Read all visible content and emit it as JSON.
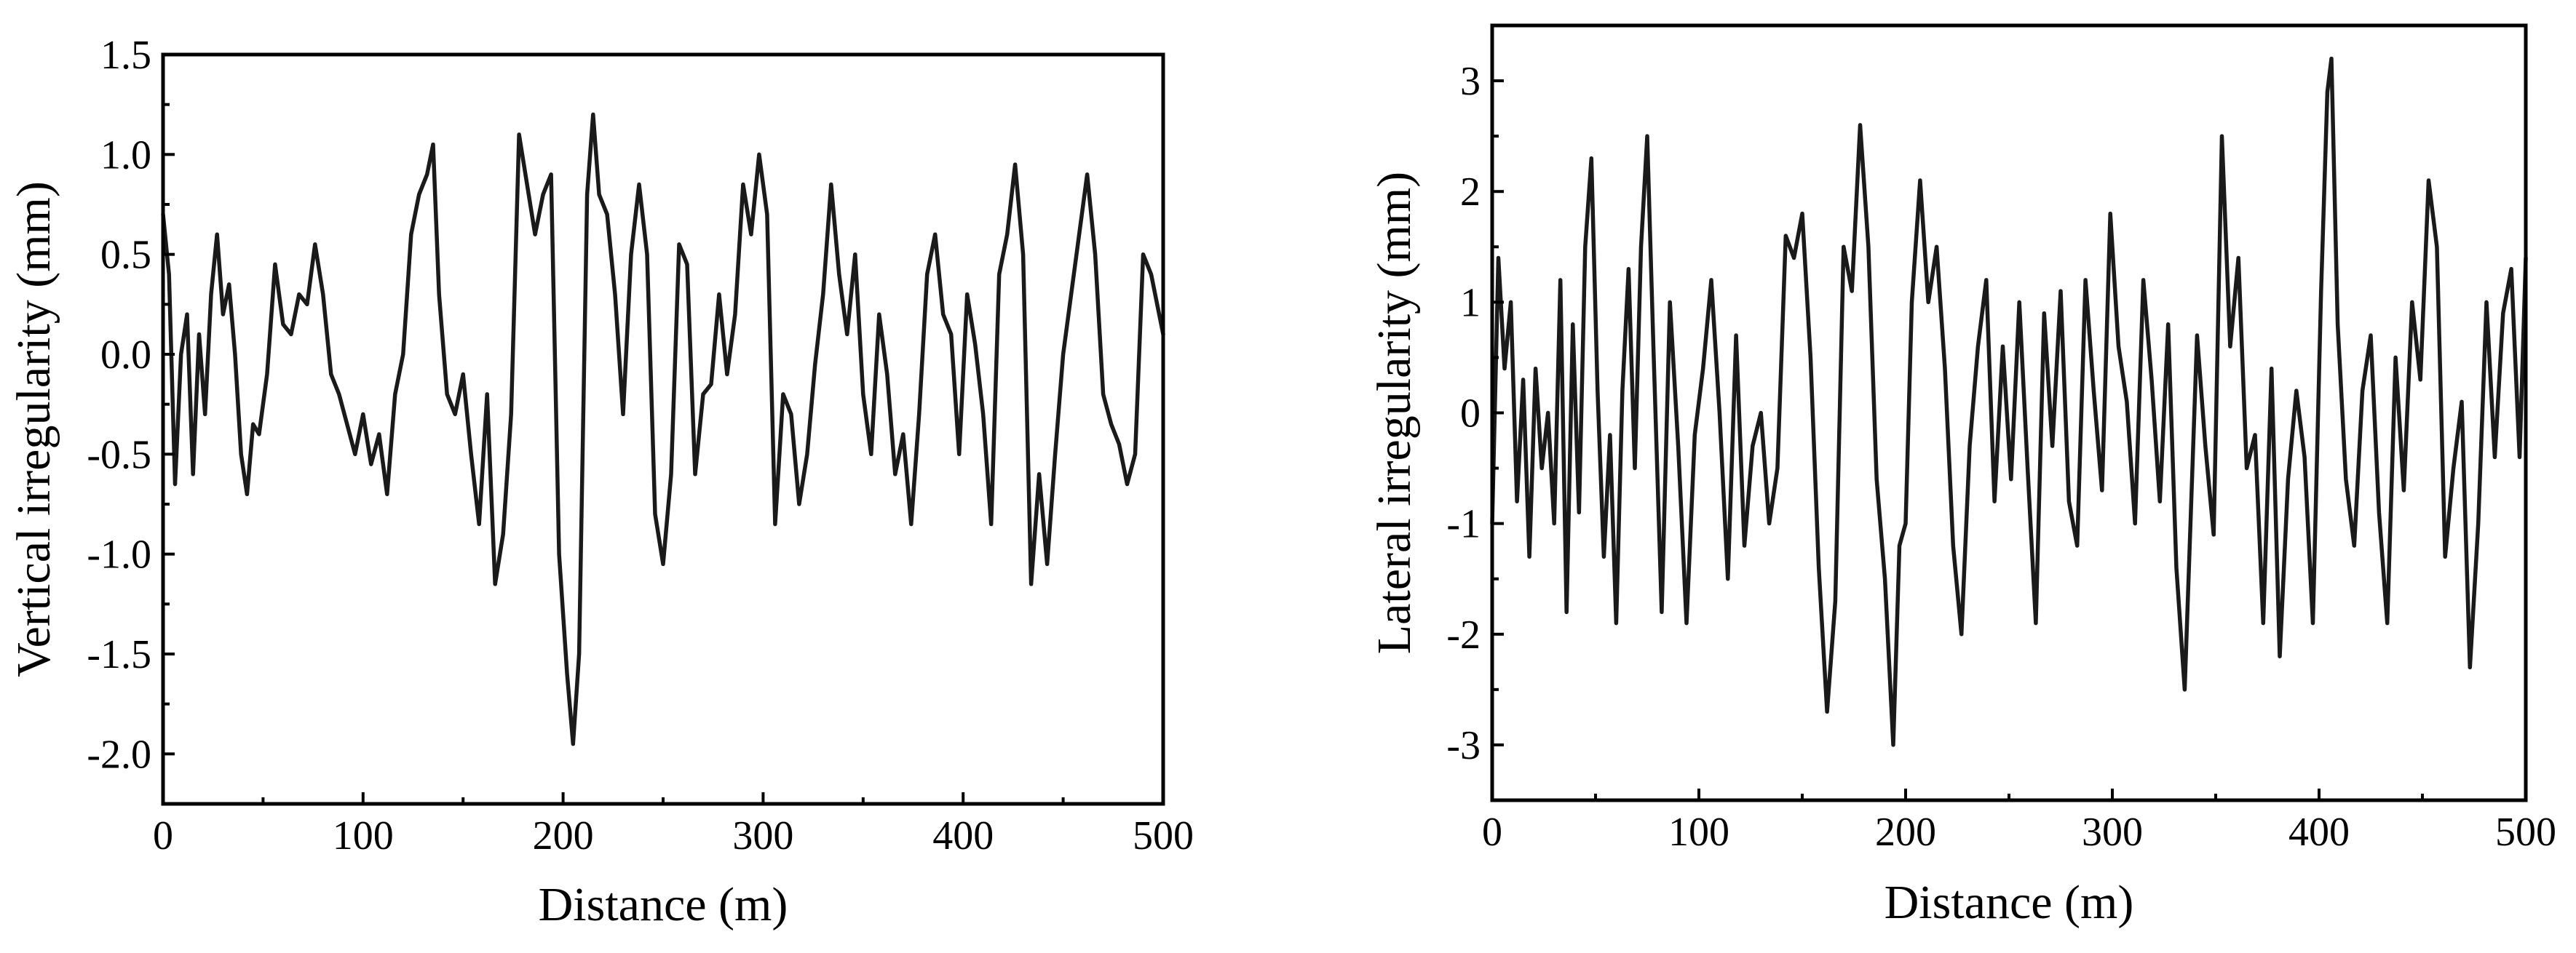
{
  "chart_data": [
    {
      "type": "line",
      "title": "",
      "xlabel": "Distance (m)",
      "ylabel": "Vertical irregularity (mm)",
      "xlim": [
        0,
        500
      ],
      "ylim": [
        -2.25,
        1.5
      ],
      "xticks": [
        0,
        100,
        200,
        300,
        400,
        500
      ],
      "xtick_labels": [
        "0",
        "100",
        "200",
        "300",
        "400",
        "500"
      ],
      "yticks": [
        -2.0,
        -1.5,
        -1.0,
        -0.5,
        0.0,
        0.5,
        1.0,
        1.5
      ],
      "ytick_labels": [
        "-2.0",
        "-1.5",
        "-1.0",
        "-0.5",
        "0.0",
        "0.5",
        "1.0",
        "1.5"
      ],
      "grid": false,
      "legend": "none",
      "color": "#1a1a1a",
      "series": [
        {
          "x": [
            0,
            3,
            6,
            9,
            12,
            15,
            18,
            21,
            24,
            27,
            30,
            33,
            36,
            39,
            42,
            45,
            48,
            52,
            56,
            60,
            64,
            68,
            72,
            76,
            80,
            84,
            88,
            92,
            96,
            100,
            104,
            108,
            112,
            116,
            120,
            124,
            128,
            132,
            135,
            138,
            142,
            146,
            150,
            154,
            158,
            162,
            166,
            170,
            174,
            178,
            182,
            186,
            190,
            194,
            198,
            202,
            205,
            208,
            212,
            215,
            218,
            222,
            226,
            230,
            234,
            238,
            242,
            246,
            250,
            254,
            258,
            262,
            266,
            270,
            274,
            278,
            282,
            286,
            290,
            294,
            298,
            302,
            306,
            310,
            314,
            318,
            322,
            326,
            330,
            334,
            338,
            342,
            346,
            350,
            354,
            358,
            362,
            366,
            370,
            374,
            378,
            382,
            386,
            390,
            394,
            398,
            402,
            406,
            410,
            414,
            418,
            422,
            426,
            430,
            434,
            438,
            442,
            446,
            450,
            454,
            458,
            462,
            466,
            470,
            474,
            478,
            482,
            486,
            490,
            494,
            498,
            500
          ],
          "y": [
            0.7,
            0.4,
            -0.65,
            0.0,
            0.2,
            -0.6,
            0.1,
            -0.3,
            0.3,
            0.6,
            0.2,
            0.35,
            0.0,
            -0.5,
            -0.7,
            -0.35,
            -0.4,
            -0.1,
            0.45,
            0.15,
            0.1,
            0.3,
            0.25,
            0.55,
            0.3,
            -0.1,
            -0.2,
            -0.35,
            -0.5,
            -0.3,
            -0.55,
            -0.4,
            -0.7,
            -0.2,
            0.0,
            0.6,
            0.8,
            0.9,
            1.05,
            0.3,
            -0.2,
            -0.3,
            -0.1,
            -0.5,
            -0.85,
            -0.2,
            -1.15,
            -0.9,
            -0.3,
            1.1,
            0.85,
            0.6,
            0.8,
            0.9,
            -1.0,
            -1.6,
            -1.95,
            -1.5,
            0.8,
            1.2,
            0.8,
            0.7,
            0.3,
            -0.3,
            0.5,
            0.85,
            0.5,
            -0.8,
            -1.05,
            -0.6,
            0.55,
            0.45,
            -0.6,
            -0.2,
            -0.15,
            0.3,
            -0.1,
            0.2,
            0.85,
            0.6,
            1.0,
            0.7,
            -0.85,
            -0.2,
            -0.3,
            -0.75,
            -0.5,
            -0.05,
            0.3,
            0.85,
            0.4,
            0.1,
            0.5,
            -0.2,
            -0.5,
            0.2,
            -0.1,
            -0.6,
            -0.4,
            -0.85,
            -0.3,
            0.4,
            0.6,
            0.2,
            0.1,
            -0.5,
            0.3,
            0.05,
            -0.3,
            -0.85,
            0.4,
            0.6,
            0.95,
            0.5,
            -1.15,
            -0.6,
            -1.05,
            -0.5,
            0.0,
            0.3,
            0.6,
            0.9,
            0.5,
            -0.2,
            -0.35,
            -0.45,
            -0.65,
            -0.5,
            0.5,
            0.4,
            0.2,
            0.1
          ]
        }
      ]
    },
    {
      "type": "line",
      "title": "",
      "xlabel": "Distance (m)",
      "ylabel": "Lateral irregularity (mm)",
      "xlim": [
        0,
        500
      ],
      "ylim": [
        -3.5,
        3.5
      ],
      "xticks": [
        0,
        100,
        200,
        300,
        400,
        500
      ],
      "xtick_labels": [
        "0",
        "100",
        "200",
        "300",
        "400",
        "500"
      ],
      "yticks": [
        -3,
        -2,
        -1,
        0,
        1,
        2,
        3
      ],
      "ytick_labels": [
        "-3",
        "-2",
        "-1",
        "0",
        "1",
        "2",
        "3"
      ],
      "grid": false,
      "legend": "none",
      "color": "#1a1a1a",
      "series": [
        {
          "x": [
            0,
            3,
            6,
            9,
            12,
            15,
            18,
            21,
            24,
            27,
            30,
            33,
            36,
            39,
            42,
            45,
            48,
            51,
            54,
            57,
            60,
            63,
            66,
            69,
            72,
            75,
            78,
            82,
            86,
            90,
            94,
            98,
            102,
            106,
            110,
            114,
            118,
            122,
            126,
            130,
            134,
            138,
            142,
            146,
            150,
            154,
            158,
            162,
            166,
            170,
            174,
            178,
            182,
            186,
            190,
            194,
            197,
            200,
            203,
            207,
            211,
            215,
            219,
            223,
            227,
            231,
            235,
            239,
            243,
            247,
            251,
            255,
            259,
            263,
            267,
            271,
            275,
            279,
            283,
            287,
            291,
            295,
            299,
            303,
            307,
            311,
            315,
            319,
            323,
            327,
            331,
            335,
            338,
            341,
            345,
            349,
            353,
            357,
            361,
            365,
            369,
            373,
            377,
            381,
            385,
            389,
            393,
            397,
            401,
            404,
            406,
            409,
            413,
            417,
            421,
            425,
            429,
            433,
            437,
            441,
            445,
            449,
            453,
            457,
            461,
            465,
            469,
            473,
            477,
            481,
            485,
            489,
            493,
            497,
            500
          ],
          "y": [
            -1.0,
            1.4,
            0.4,
            1.0,
            -0.8,
            0.3,
            -1.3,
            0.4,
            -0.5,
            0.0,
            -1.0,
            1.2,
            -1.8,
            0.8,
            -0.9,
            1.5,
            2.3,
            0.2,
            -1.3,
            -0.2,
            -1.9,
            0.2,
            1.3,
            -0.5,
            1.5,
            2.5,
            0.6,
            -1.8,
            1.0,
            -0.3,
            -1.9,
            -0.2,
            0.4,
            1.2,
            0.0,
            -1.5,
            0.7,
            -1.2,
            -0.3,
            0.0,
            -1.0,
            -0.5,
            1.6,
            1.4,
            1.8,
            0.5,
            -1.4,
            -2.7,
            -1.7,
            1.5,
            1.1,
            2.6,
            1.5,
            -0.6,
            -1.5,
            -3.0,
            -1.2,
            -1.0,
            1.0,
            2.1,
            1.0,
            1.5,
            0.4,
            -1.2,
            -2.0,
            -0.3,
            0.6,
            1.2,
            -0.8,
            0.6,
            -0.6,
            1.0,
            -0.5,
            -1.9,
            0.9,
            -0.3,
            1.1,
            -0.8,
            -1.2,
            1.2,
            0.2,
            -0.7,
            1.8,
            0.6,
            0.1,
            -1.0,
            1.2,
            0.3,
            -0.8,
            0.8,
            -1.4,
            -2.5,
            -0.9,
            0.7,
            -0.3,
            -1.1,
            2.5,
            0.6,
            1.4,
            -0.5,
            -0.2,
            -1.9,
            0.4,
            -2.2,
            -0.6,
            0.2,
            -0.4,
            -1.9,
            1.1,
            2.9,
            3.2,
            0.8,
            -0.6,
            -1.2,
            0.2,
            0.7,
            -0.9,
            -1.9,
            0.5,
            -0.7,
            1.0,
            0.3,
            2.1,
            1.5,
            -1.3,
            -0.5,
            0.1,
            -2.3,
            -1.0,
            1.0,
            -0.4,
            0.9,
            1.3,
            -0.4,
            1.4
          ]
        }
      ]
    }
  ]
}
